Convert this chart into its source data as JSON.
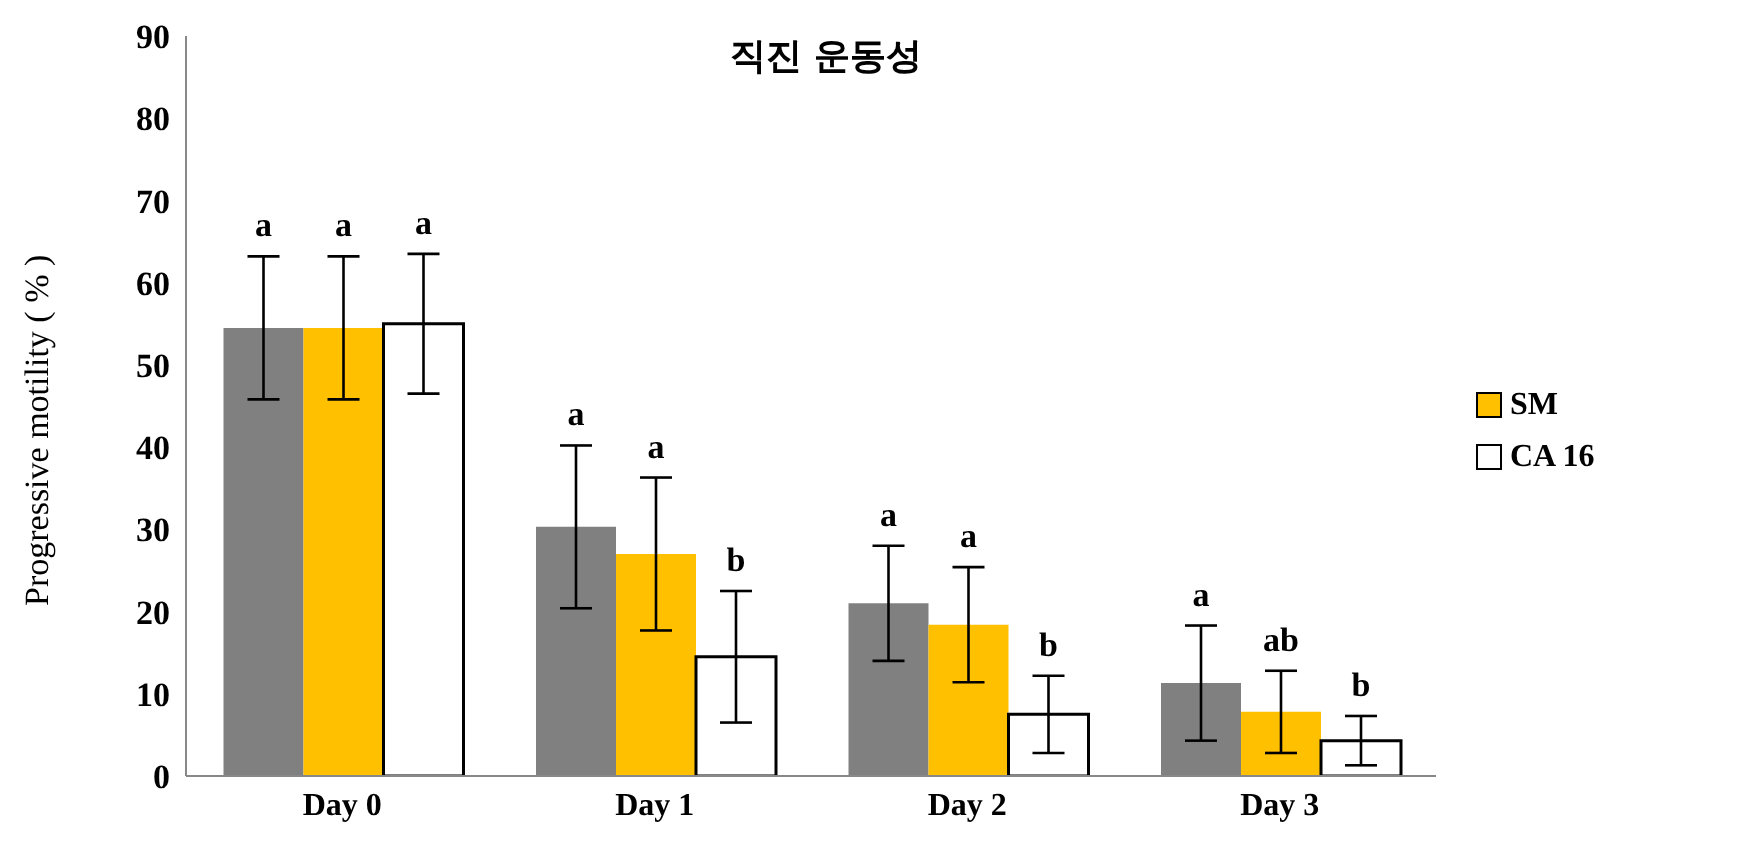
{
  "chart_data": {
    "type": "bar",
    "title": "직진 운동성",
    "ylabel": "Progressive motility ( % )",
    "categories": [
      "Day 0",
      "Day 1",
      "Day 2",
      "Day 3"
    ],
    "series": [
      {
        "color": "#808080",
        "values": [
          54.5,
          30.3,
          21,
          11.3
        ],
        "errors": [
          8.7,
          9.9,
          7,
          7
        ],
        "value_labels": [
          "a",
          "a",
          "a",
          "a"
        ]
      },
      {
        "name": "SM",
        "color": "#ffc000",
        "values": [
          54.5,
          27,
          18.4,
          7.8
        ],
        "errors": [
          8.7,
          9.3,
          7,
          5
        ],
        "value_labels": [
          "a",
          "a",
          "a",
          "ab"
        ]
      },
      {
        "name": "CA 16",
        "color": "#ffffff",
        "values": [
          55,
          14.5,
          7.5,
          4.3
        ],
        "errors": [
          8.5,
          8,
          4.7,
          3
        ],
        "value_labels": [
          "a",
          "b",
          "b",
          "b"
        ]
      }
    ],
    "ylim": [
      0,
      90
    ],
    "yticks": [
      0,
      10,
      20,
      30,
      40,
      50,
      60,
      70,
      80,
      90
    ],
    "grid": false,
    "legend": "right"
  }
}
